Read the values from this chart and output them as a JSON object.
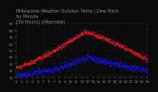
{
  "title": "Milwaukee Weather Outdoor Temp / Dew Point\nby Minute\n(24 Hours) (Alternate)",
  "title_fontsize": 3.5,
  "background_color": "#0a0a0a",
  "plot_bg_color": "#0a0a0a",
  "grid_color": "#1a1a3a",
  "temp_color": "#ff1111",
  "dew_color": "#1111ff",
  "xlim": [
    0,
    1440
  ],
  "ylim": [
    10,
    90
  ],
  "tick_color": "#888888",
  "tick_fontsize": 2.8,
  "yticks": [
    10,
    20,
    30,
    40,
    50,
    60,
    70,
    80,
    90
  ],
  "ytick_labels": [
    "10",
    "20",
    "30",
    "40",
    "50",
    "60",
    "70",
    "80",
    "90"
  ],
  "xtick_step": 60,
  "n_minutes": 1440,
  "dot_size": 0.4,
  "dot_step": 2
}
